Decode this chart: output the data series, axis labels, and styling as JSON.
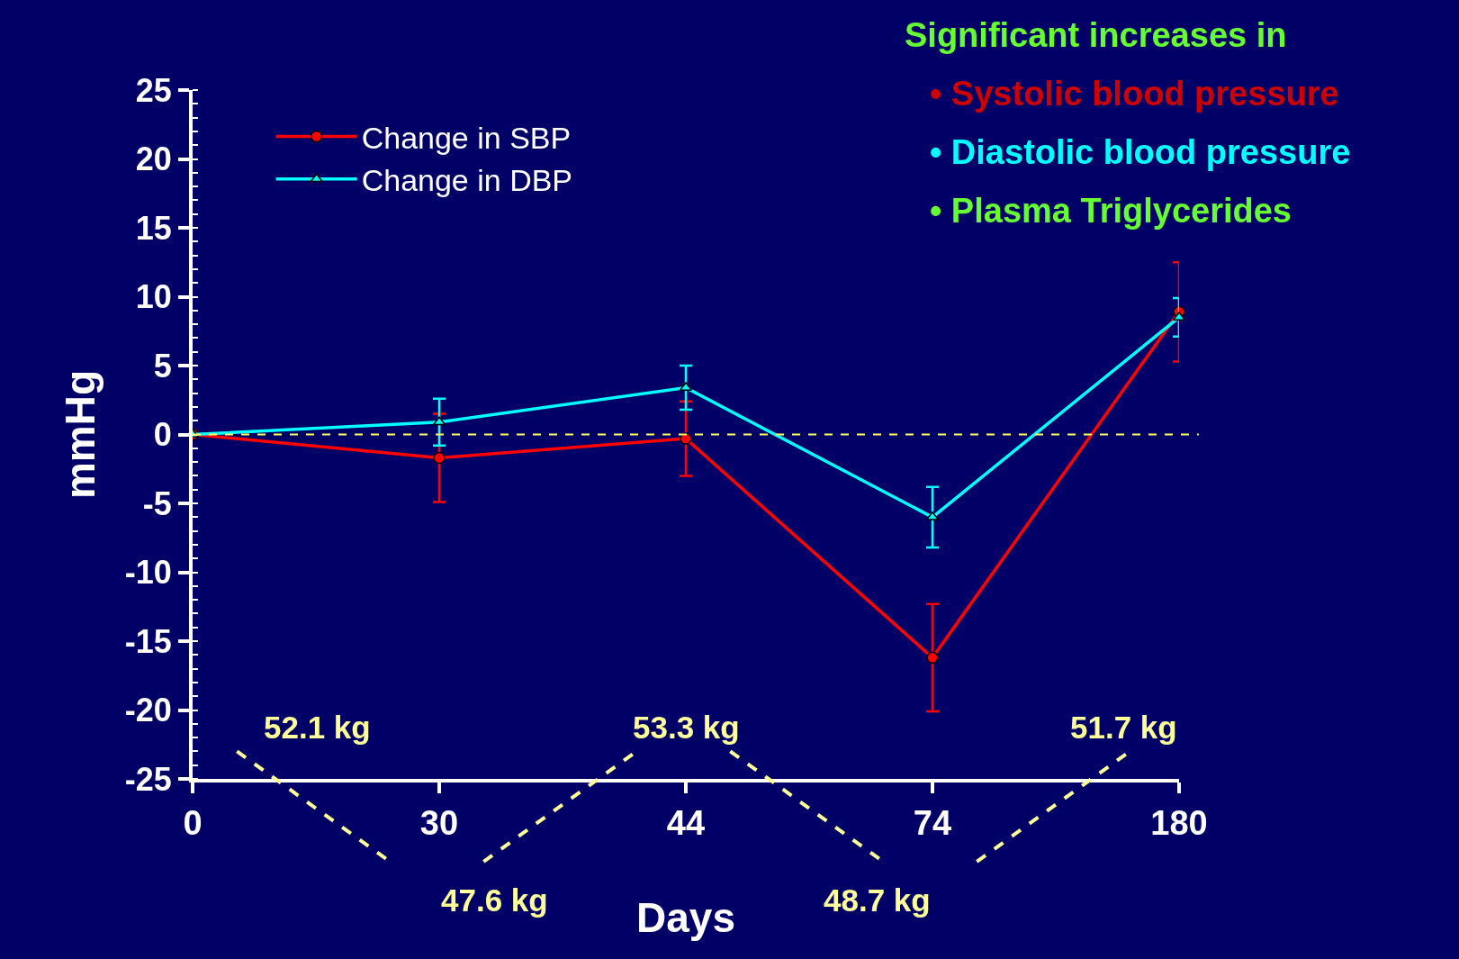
{
  "chart_data": {
    "type": "line",
    "xlabel": "Days",
    "ylabel": "mmHg",
    "categories": [
      "0",
      "30",
      "44",
      "74",
      "180"
    ],
    "series": [
      {
        "name": "Change in SBP",
        "color": "#ff0000",
        "marker": "circle",
        "values": [
          0,
          -1.7,
          -0.3,
          -16.2,
          8.9
        ],
        "errors": [
          null,
          3.2,
          2.7,
          3.9,
          3.6
        ]
      },
      {
        "name": "Change in DBP",
        "color": "#00ffff",
        "marker": "triangle",
        "values": [
          0,
          0.9,
          3.4,
          -6.0,
          8.5
        ],
        "errors": [
          null,
          1.7,
          1.6,
          2.2,
          1.4
        ]
      }
    ],
    "ylim": [
      -25,
      25
    ],
    "yticks": [
      -25,
      -20,
      -15,
      -10,
      -5,
      0,
      5,
      10,
      15,
      20,
      25
    ],
    "ref_lines": [
      {
        "axis": "y",
        "value": 0,
        "color": "#ffff66",
        "line_style": "dashed"
      }
    ],
    "legend": "top left",
    "grid": false,
    "annotations": [
      "52.1 kg",
      "47.6 kg",
      "53.3 kg",
      "48.7 kg",
      "51.7 kg",
      "Significant increases in",
      "• Systolic blood pressure",
      "• Diastolic blood pressure",
      "• Plasma Triglycerides"
    ]
  }
}
